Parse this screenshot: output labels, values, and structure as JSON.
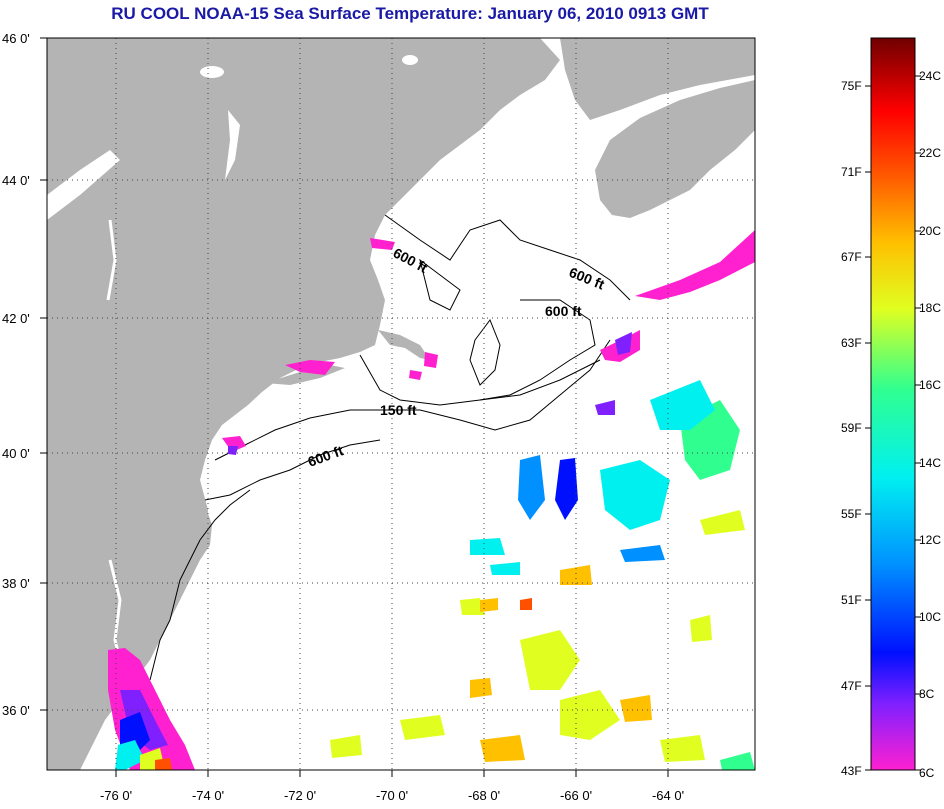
{
  "title": "RU COOL  NOAA-15  Sea Surface Temperature:  January 06, 2010 0913 GMT",
  "map": {
    "lat_labels": [
      "46 0'",
      "44 0'",
      "42 0'",
      "40 0'",
      "38 0'",
      "36 0'"
    ],
    "lon_labels": [
      "-76 0'",
      "-74 0'",
      "-72 0'",
      "-70 0'",
      "-68 0'",
      "-66 0'",
      "-64 0'"
    ],
    "contour_labels": [
      "600 ft",
      "600 ft",
      "600 ft",
      "150 ft",
      "600 ft"
    ],
    "land_color": "#b4b4b4",
    "ocean_color": "#ffffff"
  },
  "colorbar": {
    "fahrenheit_labels": [
      "75F",
      "71F",
      "67F",
      "63F",
      "59F",
      "55F",
      "51F",
      "47F",
      "43F"
    ],
    "celsius_labels": [
      "24C",
      "22C",
      "20C",
      "18C",
      "16C",
      "14C",
      "12C",
      "10C",
      "8C",
      "6C"
    ],
    "colors": [
      "#ff20d0",
      "#8020ff",
      "#0010ff",
      "#0090ff",
      "#00f0f0",
      "#30ff90",
      "#e0ff20",
      "#ffc000",
      "#ff5000",
      "#ff0000",
      "#700000"
    ]
  }
}
